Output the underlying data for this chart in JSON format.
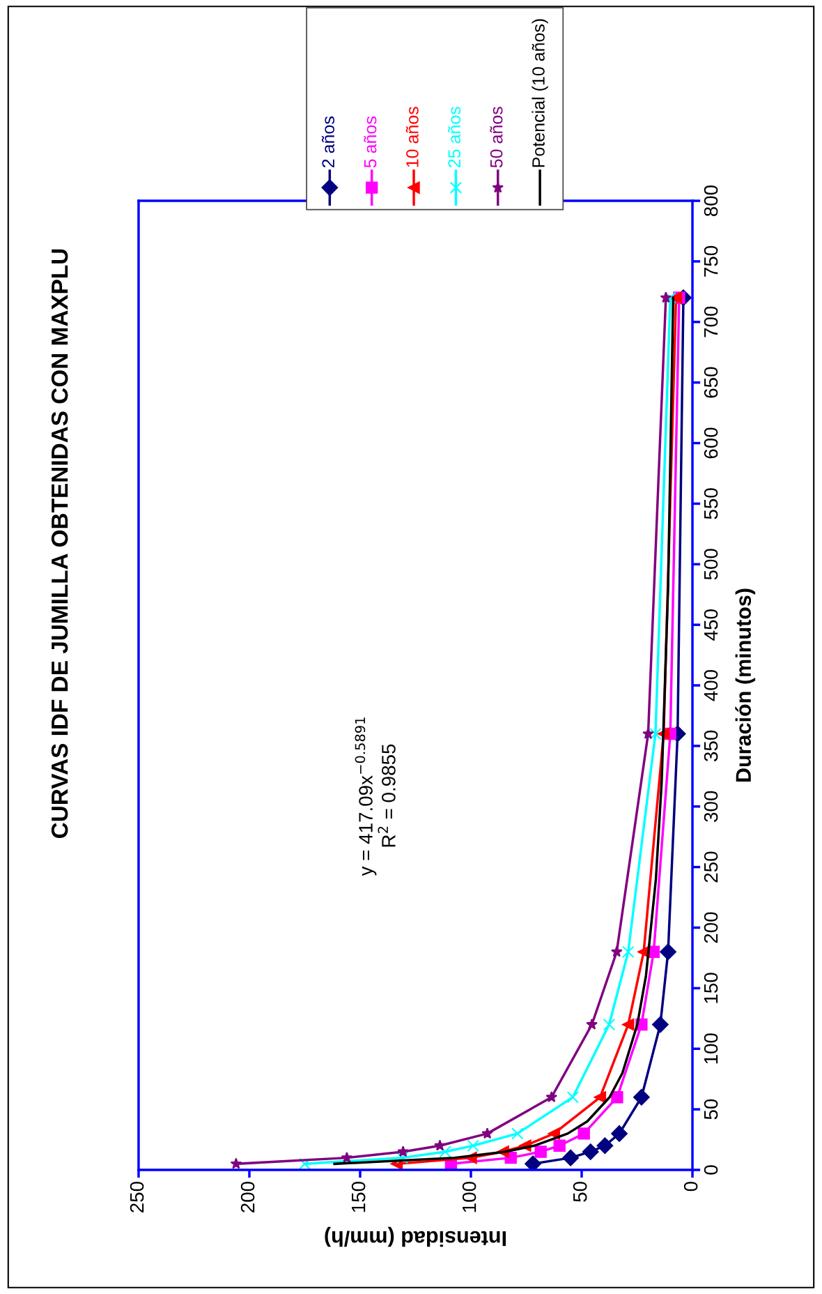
{
  "chart_data": {
    "type": "line",
    "title": "CURVAS IDF DE JUMILLA OBTENIDAS CON MAXPLU",
    "xlabel": "Intensidad (mm/h)",
    "ylabel": "Duración (minutos)",
    "xlim": [
      250,
      0
    ],
    "xticks": [
      0,
      50,
      100,
      150,
      200,
      250
    ],
    "ylim": [
      0,
      800
    ],
    "yticks": [
      0,
      50,
      100,
      150,
      200,
      250,
      300,
      350,
      400,
      450,
      500,
      550,
      600,
      650,
      700,
      750,
      800
    ],
    "grid": false,
    "legend": "top right",
    "annotations": [
      "y = 417.09x$^{−0.5891}$",
      "R$^{2}$ = 0.9855"
    ],
    "series": [
      {
        "name": "2 años",
        "color": "#000080",
        "marker": "diamond",
        "x": [
          72,
          55,
          46,
          39.5,
          33,
          23,
          14.5,
          11,
          6.7,
          4.1
        ],
        "values": [
          5,
          10,
          15,
          20,
          30,
          60,
          120,
          180,
          360,
          720
        ]
      },
      {
        "name": "5 años",
        "color": "#ff00ff",
        "marker": "square",
        "x": [
          109,
          82,
          68.5,
          60,
          49,
          34,
          23,
          17.5,
          10,
          6
        ],
        "values": [
          5,
          10,
          15,
          20,
          30,
          60,
          120,
          180,
          360,
          720
        ]
      },
      {
        "name": "10 años",
        "color": "#ff0000",
        "marker": "triangle",
        "x": [
          133.5,
          100,
          85.5,
          75.5,
          62.5,
          41.7,
          29,
          22,
          13,
          7.4
        ],
        "values": [
          5,
          10,
          15,
          20,
          30,
          60,
          120,
          180,
          360,
          720
        ]
      },
      {
        "name": "25 años",
        "color": "#00ffff",
        "marker": "cross",
        "x": [
          175,
          131,
          111.6,
          99,
          79,
          54,
          37.6,
          29,
          16.7,
          10
        ],
        "values": [
          5,
          10,
          15,
          20,
          30,
          60,
          120,
          180,
          360,
          720
        ]
      },
      {
        "name": "50 años",
        "color": "#800080",
        "marker": "star",
        "x": [
          206,
          156,
          130.6,
          114,
          92.6,
          63.6,
          45.4,
          34.2,
          20,
          12
        ],
        "values": [
          5,
          10,
          15,
          20,
          30,
          60,
          120,
          180,
          360,
          720
        ]
      },
      {
        "name": "Potencial (10 años)",
        "color": "#000000",
        "marker": "none",
        "type": "line",
        "x": [
          161.6,
          107.4,
          84.6,
          71.4,
          56.3,
          47.5,
          37.4,
          31.6,
          24.9,
          21.0,
          16.5,
          13.9,
          11.0,
          8.7
        ],
        "values": [
          5,
          10,
          15,
          20,
          30,
          40,
          60,
          80,
          120,
          160,
          240,
          320,
          480,
          720
        ]
      }
    ]
  }
}
